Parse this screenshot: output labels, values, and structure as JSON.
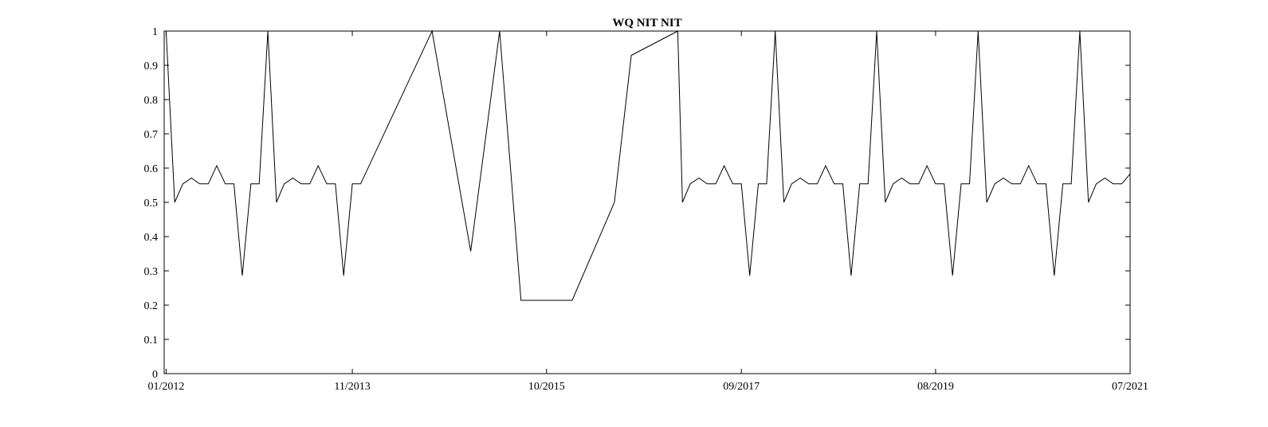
{
  "chart_data": {
    "type": "line",
    "title": "WQ NIT NIT",
    "xlabel": "",
    "ylabel": "",
    "xlim": [
      "2011-12-25",
      "2021-07-01"
    ],
    "ylim": [
      0,
      1
    ],
    "x_tick_labels": [
      "01/2012",
      "11/2013",
      "10/2015",
      "09/2017",
      "08/2019",
      "07/2021"
    ],
    "x_tick_values": [
      "2012-01-01",
      "2013-11-01",
      "2015-10-01",
      "2017-09-01",
      "2019-08-01",
      "2021-07-01"
    ],
    "y_tick_labels": [
      "0",
      "0.1",
      "0.2",
      "0.3",
      "0.4",
      "0.5",
      "0.6",
      "0.7",
      "0.8",
      "0.9",
      "1"
    ],
    "y_tick_values": [
      0,
      0.1,
      0.2,
      0.3,
      0.4,
      0.5,
      0.6,
      0.7,
      0.8,
      0.9,
      1
    ],
    "grid": false,
    "series": [
      {
        "x": [
          "2012-01-01",
          "2012-02-01",
          "2012-03-01",
          "2012-04-01",
          "2012-05-01",
          "2012-06-01",
          "2012-07-01",
          "2012-08-01",
          "2012-09-01",
          "2012-10-01",
          "2012-11-01",
          "2012-12-01",
          "2013-01-01",
          "2013-02-01",
          "2013-03-01",
          "2013-04-01",
          "2013-05-01",
          "2013-06-01",
          "2013-07-01",
          "2013-08-01",
          "2013-09-01",
          "2013-10-01",
          "2013-11-01",
          "2013-12-01",
          "2014-08-15",
          "2015-01-01",
          "2015-04-15",
          "2015-07-01",
          "2016-01-01",
          "2016-06-01",
          "2016-08-01",
          "2017-01-15",
          "2017-02-01",
          "2017-03-01",
          "2017-04-01",
          "2017-05-01",
          "2017-06-01",
          "2017-07-01",
          "2017-08-01",
          "2017-09-01",
          "2017-10-01",
          "2017-11-01",
          "2017-12-01",
          "2018-01-01",
          "2018-02-01",
          "2018-03-01",
          "2018-04-01",
          "2018-05-01",
          "2018-06-01",
          "2018-07-01",
          "2018-08-01",
          "2018-09-01",
          "2018-10-01",
          "2018-11-01",
          "2018-12-01",
          "2019-01-01",
          "2019-02-01",
          "2019-03-01",
          "2019-04-01",
          "2019-05-01",
          "2019-06-01",
          "2019-07-01",
          "2019-08-01",
          "2019-09-01",
          "2019-10-01",
          "2019-11-01",
          "2019-12-01",
          "2020-01-01",
          "2020-02-01",
          "2020-03-01",
          "2020-04-01",
          "2020-05-01",
          "2020-06-01",
          "2020-07-01",
          "2020-08-01",
          "2020-09-01",
          "2020-10-01",
          "2020-11-01",
          "2020-12-01",
          "2021-01-01",
          "2021-02-01",
          "2021-03-01",
          "2021-04-01",
          "2021-05-01",
          "2021-06-01",
          "2021-07-01"
        ],
        "values": [
          1,
          0.5,
          0.554,
          0.571,
          0.554,
          0.554,
          0.607,
          0.554,
          0.554,
          0.286,
          0.554,
          0.554,
          1,
          0.5,
          0.554,
          0.571,
          0.554,
          0.554,
          0.607,
          0.554,
          0.554,
          0.286,
          0.554,
          0.554,
          1,
          0.357,
          1,
          0.214,
          0.214,
          0.5,
          0.929,
          1,
          0.5,
          0.554,
          0.571,
          0.554,
          0.554,
          0.607,
          0.554,
          0.554,
          0.286,
          0.554,
          0.554,
          1,
          0.5,
          0.554,
          0.571,
          0.554,
          0.554,
          0.607,
          0.554,
          0.554,
          0.286,
          0.554,
          0.554,
          1,
          0.5,
          0.554,
          0.571,
          0.554,
          0.554,
          0.607,
          0.554,
          0.554,
          0.286,
          0.554,
          0.554,
          1,
          0.5,
          0.554,
          0.571,
          0.554,
          0.554,
          0.607,
          0.554,
          0.554,
          0.286,
          0.554,
          0.554,
          1,
          0.5,
          0.554,
          0.571,
          0.554,
          0.554,
          0.583
        ]
      }
    ]
  }
}
